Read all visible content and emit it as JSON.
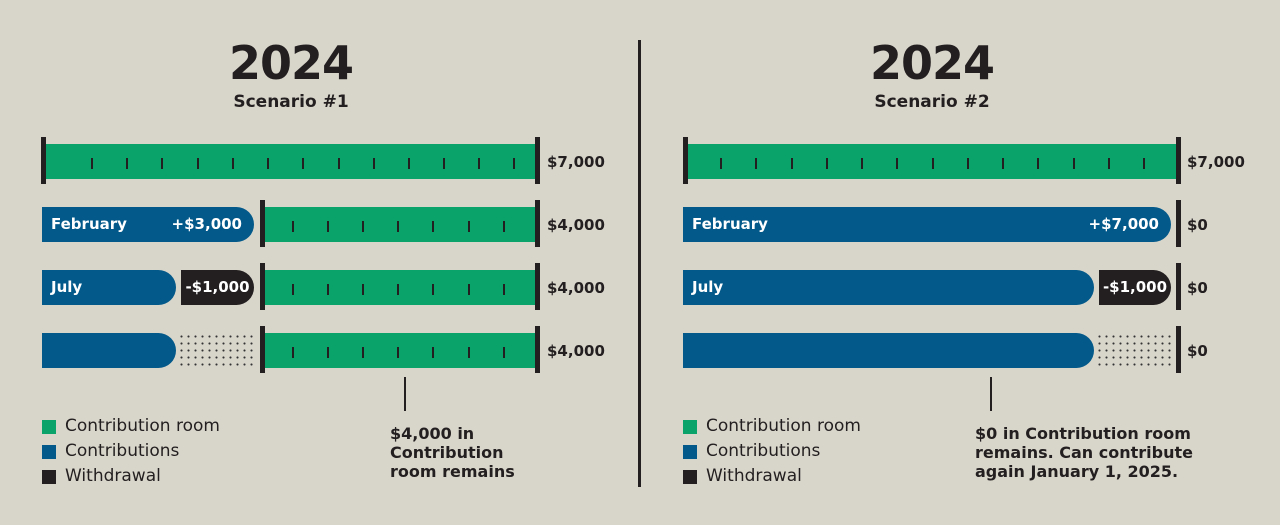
{
  "colors": {
    "contribution_room": "#0aa46b",
    "contributions": "#03598a",
    "withdrawal": "#231f20",
    "background": "#d8d6cb"
  },
  "scenario1": {
    "year": "2024",
    "title": "Scenario #1",
    "rows": [
      {
        "value": "$7,000"
      },
      {
        "month": "February",
        "amount": "+$3,000",
        "value": "$4,000"
      },
      {
        "month": "July",
        "amount": "-$1,000",
        "value": "$4,000"
      },
      {
        "value": "$4,000"
      }
    ],
    "note": [
      "$4,000 in",
      "Contribution",
      "room remains"
    ]
  },
  "scenario2": {
    "year": "2024",
    "title": "Scenario #2",
    "rows": [
      {
        "value": "$7,000"
      },
      {
        "month": "February",
        "amount": "+$7,000",
        "value": "$0"
      },
      {
        "month": "July",
        "amount": "-$1,000",
        "value": "$0"
      },
      {
        "value": "$0"
      }
    ],
    "note": [
      "$0 in Contribution room",
      "remains. Can contribute",
      "again January 1, 2025."
    ]
  },
  "legend": {
    "room": "Contribution room",
    "contributions": "Contributions",
    "withdrawal": "Withdrawal"
  }
}
